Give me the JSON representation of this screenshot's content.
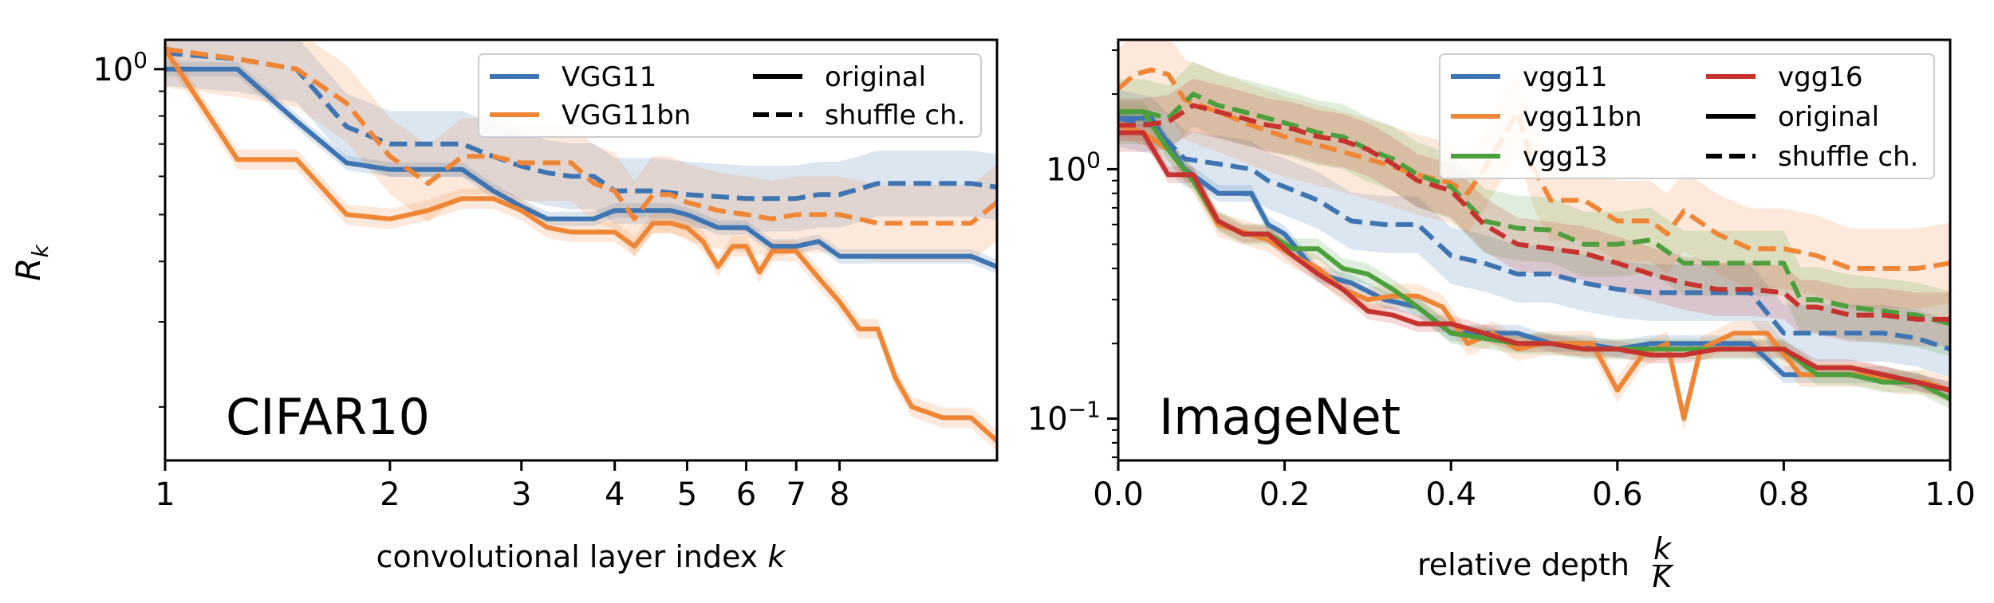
{
  "colors": {
    "blue": "#3f74b2",
    "orange": "#ef8636",
    "green": "#4d9f3d",
    "red": "#c6322d"
  },
  "chart_data": [
    {
      "type": "line",
      "panel_label": "CIFAR10",
      "xlabel": "convolutional layer index",
      "xlabel_var": "k",
      "ylabel": "R",
      "ylabel_sub": "k",
      "yscale": "log",
      "ylim": [
        0.155,
        1.15
      ],
      "xlim": [
        1,
        13
      ],
      "grid": false,
      "legend_position": "top-right",
      "x_ticks": [
        {
          "label": "1",
          "value": 1
        },
        {
          "label": "2",
          "value": 2
        },
        {
          "label": "3",
          "value": 3
        },
        {
          "label": "4",
          "value": 4
        },
        {
          "label": "5",
          "value": 5
        },
        {
          "label": "6",
          "value": 6
        },
        {
          "label": "7",
          "value": 7
        },
        {
          "label": "8",
          "value": 8
        }
      ],
      "y_ticks": [
        {
          "base": "10",
          "exp": "0",
          "value": 1.0
        }
      ],
      "legend": {
        "left": [
          {
            "label": "VGG11",
            "color_key": "blue",
            "style": "solid"
          },
          {
            "label": "VGG11bn",
            "color_key": "orange",
            "style": "solid"
          }
        ],
        "right": [
          {
            "label": "original",
            "color_key": "black",
            "style": "solid"
          },
          {
            "label": "shuffle ch.",
            "color_key": "black",
            "style": "dashed"
          }
        ]
      },
      "series": [
        {
          "name": "VGG11 original",
          "color_key": "blue",
          "style": "solid",
          "band": 0.035,
          "x": [
            1,
            1.25,
            1.5,
            1.75,
            2,
            2.25,
            2.5,
            2.75,
            3,
            3.25,
            3.5,
            3.75,
            4,
            4.25,
            4.5,
            4.75,
            5,
            5.5,
            6,
            6.5,
            7,
            7.5,
            8,
            9,
            10,
            11,
            12,
            13
          ],
          "y": [
            1.0,
            1.0,
            0.78,
            0.64,
            0.62,
            0.62,
            0.62,
            0.56,
            0.52,
            0.49,
            0.49,
            0.49,
            0.51,
            0.51,
            0.51,
            0.51,
            0.5,
            0.47,
            0.47,
            0.43,
            0.43,
            0.44,
            0.41,
            0.41,
            0.41,
            0.41,
            0.41,
            0.39
          ]
        },
        {
          "name": "VGG11 shuffle ch.",
          "color_key": "blue",
          "style": "dashed",
          "band": 0.17,
          "x": [
            1,
            1.25,
            1.5,
            1.75,
            2,
            2.25,
            2.5,
            2.75,
            3,
            3.25,
            3.5,
            3.75,
            4,
            4.5,
            5,
            6,
            6.5,
            7,
            7.5,
            8,
            9,
            10,
            11,
            12,
            13
          ],
          "y": [
            1.08,
            1.05,
            1.0,
            0.76,
            0.7,
            0.7,
            0.7,
            0.66,
            0.63,
            0.61,
            0.6,
            0.6,
            0.56,
            0.56,
            0.55,
            0.54,
            0.54,
            0.54,
            0.55,
            0.55,
            0.58,
            0.58,
            0.58,
            0.58,
            0.57
          ]
        },
        {
          "name": "VGG11bn original",
          "color_key": "orange",
          "style": "solid",
          "band": 0.05,
          "x": [
            1,
            1.25,
            1.5,
            1.75,
            2,
            2.25,
            2.5,
            2.75,
            3,
            3.25,
            3.5,
            3.75,
            4,
            4.25,
            4.5,
            4.75,
            5,
            5.25,
            5.5,
            5.75,
            6,
            6.25,
            6.5,
            6.75,
            7,
            7.5,
            8,
            8.5,
            9,
            9.5,
            10,
            11,
            12,
            13
          ],
          "y": [
            1.1,
            0.65,
            0.65,
            0.5,
            0.49,
            0.51,
            0.54,
            0.54,
            0.51,
            0.47,
            0.46,
            0.46,
            0.46,
            0.43,
            0.48,
            0.48,
            0.47,
            0.44,
            0.39,
            0.43,
            0.43,
            0.38,
            0.42,
            0.42,
            0.42,
            0.37,
            0.33,
            0.29,
            0.29,
            0.23,
            0.2,
            0.19,
            0.19,
            0.17
          ]
        },
        {
          "name": "VGG11bn shuffle ch.",
          "color_key": "orange",
          "style": "dashed",
          "band": 0.2,
          "x": [
            1,
            1.25,
            1.5,
            1.75,
            2,
            2.25,
            2.5,
            2.75,
            3,
            3.25,
            3.5,
            3.75,
            4,
            4.25,
            4.5,
            4.75,
            5,
            5.5,
            6,
            6.5,
            7,
            7.5,
            8,
            9,
            10,
            11,
            12,
            13
          ],
          "y": [
            1.1,
            1.05,
            1.0,
            0.85,
            0.66,
            0.58,
            0.66,
            0.66,
            0.64,
            0.64,
            0.64,
            0.58,
            0.56,
            0.49,
            0.55,
            0.55,
            0.53,
            0.51,
            0.5,
            0.49,
            0.5,
            0.5,
            0.5,
            0.48,
            0.48,
            0.48,
            0.48,
            0.53
          ]
        }
      ]
    },
    {
      "type": "line",
      "panel_label": "ImageNet",
      "xlabel": "relative depth",
      "xlabel_frac_num": "k",
      "xlabel_frac_den": "K",
      "yscale": "log",
      "ylim": [
        0.068,
        3.3
      ],
      "xlim": [
        0.0,
        1.0
      ],
      "grid": false,
      "legend_position": "top-right",
      "x_ticks": [
        {
          "label": "0.0",
          "value": 0.0
        },
        {
          "label": "0.2",
          "value": 0.2
        },
        {
          "label": "0.4",
          "value": 0.4
        },
        {
          "label": "0.6",
          "value": 0.6
        },
        {
          "label": "0.8",
          "value": 0.8
        },
        {
          "label": "1.0",
          "value": 1.0
        }
      ],
      "y_ticks": [
        {
          "base": "10",
          "exp": "0",
          "value": 1.0
        },
        {
          "base": "10",
          "exp": "−1",
          "value": 0.1
        }
      ],
      "legend": {
        "left": [
          {
            "label": "vgg11",
            "color_key": "blue",
            "style": "solid"
          },
          {
            "label": "vgg11bn",
            "color_key": "orange",
            "style": "solid"
          },
          {
            "label": "vgg13",
            "color_key": "green",
            "style": "solid"
          }
        ],
        "right": [
          {
            "label": "vgg16",
            "color_key": "red",
            "style": "solid"
          },
          {
            "label": "original",
            "color_key": "black",
            "style": "solid"
          },
          {
            "label": "shuffle ch.",
            "color_key": "black",
            "style": "dashed"
          }
        ]
      },
      "series": [
        {
          "name": "vgg11 original",
          "color_key": "blue",
          "style": "solid",
          "band": 0.08,
          "x": [
            0,
            0.04,
            0.08,
            0.12,
            0.16,
            0.18,
            0.2,
            0.24,
            0.28,
            0.32,
            0.36,
            0.4,
            0.44,
            0.48,
            0.52,
            0.56,
            0.6,
            0.64,
            0.68,
            0.72,
            0.76,
            0.8,
            0.84,
            0.88,
            0.92,
            0.96,
            1.0
          ],
          "y": [
            1.6,
            1.6,
            1.0,
            0.8,
            0.8,
            0.6,
            0.55,
            0.38,
            0.35,
            0.3,
            0.28,
            0.22,
            0.22,
            0.22,
            0.2,
            0.2,
            0.19,
            0.2,
            0.2,
            0.2,
            0.2,
            0.15,
            0.15,
            0.15,
            0.15,
            0.14,
            0.13
          ]
        },
        {
          "name": "vgg11 shuffle ch.",
          "color_key": "blue",
          "style": "dashed",
          "band": 0.3,
          "x": [
            0,
            0.04,
            0.08,
            0.12,
            0.16,
            0.18,
            0.2,
            0.24,
            0.28,
            0.32,
            0.36,
            0.4,
            0.44,
            0.48,
            0.52,
            0.56,
            0.6,
            0.64,
            0.68,
            0.72,
            0.76,
            0.8,
            0.84,
            0.88,
            0.92,
            0.96,
            1.0
          ],
          "y": [
            1.6,
            1.5,
            1.1,
            1.05,
            1.0,
            0.9,
            0.85,
            0.75,
            0.62,
            0.6,
            0.6,
            0.45,
            0.42,
            0.38,
            0.38,
            0.35,
            0.33,
            0.32,
            0.32,
            0.32,
            0.32,
            0.22,
            0.22,
            0.22,
            0.22,
            0.21,
            0.19
          ]
        },
        {
          "name": "vgg11bn original",
          "color_key": "orange",
          "style": "solid",
          "band": 0.12,
          "x": [
            0,
            0.03,
            0.06,
            0.09,
            0.12,
            0.15,
            0.18,
            0.21,
            0.24,
            0.27,
            0.3,
            0.33,
            0.36,
            0.39,
            0.42,
            0.45,
            0.48,
            0.51,
            0.54,
            0.57,
            0.6,
            0.63,
            0.66,
            0.68,
            0.7,
            0.74,
            0.78,
            0.82,
            0.86,
            0.9,
            0.94,
            0.97,
            1.0
          ],
          "y": [
            1.5,
            1.4,
            1.2,
            0.9,
            0.6,
            0.56,
            0.52,
            0.45,
            0.4,
            0.33,
            0.3,
            0.31,
            0.31,
            0.28,
            0.2,
            0.22,
            0.19,
            0.2,
            0.2,
            0.2,
            0.13,
            0.18,
            0.2,
            0.1,
            0.19,
            0.22,
            0.22,
            0.15,
            0.15,
            0.15,
            0.14,
            0.14,
            0.13
          ]
        },
        {
          "name": "vgg11bn shuffle ch.",
          "color_key": "orange",
          "style": "dashed",
          "band": 0.45,
          "x": [
            0,
            0.02,
            0.04,
            0.06,
            0.08,
            0.12,
            0.16,
            0.2,
            0.24,
            0.28,
            0.32,
            0.36,
            0.4,
            0.42,
            0.44,
            0.46,
            0.48,
            0.5,
            0.52,
            0.56,
            0.6,
            0.64,
            0.66,
            0.68,
            0.72,
            0.76,
            0.8,
            0.84,
            0.88,
            0.92,
            0.96,
            1.0
          ],
          "y": [
            2.1,
            2.4,
            2.5,
            2.4,
            1.9,
            1.7,
            1.5,
            1.35,
            1.25,
            1.15,
            1.05,
            0.95,
            0.88,
            0.8,
            1.0,
            1.3,
            1.7,
            1.0,
            0.75,
            0.75,
            0.62,
            0.62,
            0.55,
            0.68,
            0.55,
            0.48,
            0.48,
            0.45,
            0.4,
            0.4,
            0.4,
            0.42
          ]
        },
        {
          "name": "vgg13 original",
          "color_key": "green",
          "style": "solid",
          "band": 0.1,
          "x": [
            0,
            0.03,
            0.06,
            0.09,
            0.12,
            0.15,
            0.18,
            0.21,
            0.24,
            0.27,
            0.3,
            0.33,
            0.36,
            0.4,
            0.44,
            0.48,
            0.52,
            0.56,
            0.6,
            0.64,
            0.68,
            0.72,
            0.76,
            0.8,
            0.84,
            0.88,
            0.92,
            0.96,
            1.0
          ],
          "y": [
            1.7,
            1.7,
            1.2,
            0.9,
            0.62,
            0.55,
            0.55,
            0.48,
            0.48,
            0.4,
            0.38,
            0.33,
            0.28,
            0.22,
            0.21,
            0.2,
            0.2,
            0.19,
            0.19,
            0.19,
            0.19,
            0.19,
            0.19,
            0.19,
            0.15,
            0.15,
            0.14,
            0.14,
            0.12
          ]
        },
        {
          "name": "vgg13 shuffle ch.",
          "color_key": "green",
          "style": "dashed",
          "band": 0.35,
          "x": [
            0,
            0.03,
            0.06,
            0.09,
            0.12,
            0.15,
            0.18,
            0.21,
            0.24,
            0.27,
            0.3,
            0.33,
            0.36,
            0.4,
            0.44,
            0.48,
            0.52,
            0.56,
            0.6,
            0.64,
            0.68,
            0.72,
            0.76,
            0.8,
            0.82,
            0.84,
            0.88,
            0.92,
            0.96,
            1.0
          ],
          "y": [
            1.7,
            1.7,
            1.6,
            2.0,
            1.8,
            1.7,
            1.6,
            1.5,
            1.4,
            1.35,
            1.2,
            1.1,
            0.95,
            0.85,
            0.62,
            0.58,
            0.57,
            0.5,
            0.5,
            0.52,
            0.42,
            0.42,
            0.42,
            0.42,
            0.3,
            0.3,
            0.28,
            0.27,
            0.26,
            0.24
          ]
        },
        {
          "name": "vgg16 original",
          "color_key": "red",
          "style": "solid",
          "band": 0.08,
          "x": [
            0,
            0.03,
            0.06,
            0.09,
            0.12,
            0.15,
            0.18,
            0.21,
            0.24,
            0.27,
            0.3,
            0.33,
            0.36,
            0.4,
            0.44,
            0.48,
            0.52,
            0.56,
            0.6,
            0.64,
            0.68,
            0.72,
            0.76,
            0.8,
            0.84,
            0.88,
            0.92,
            0.96,
            1.0
          ],
          "y": [
            1.4,
            1.4,
            0.95,
            0.95,
            0.62,
            0.55,
            0.55,
            0.45,
            0.38,
            0.33,
            0.27,
            0.26,
            0.24,
            0.24,
            0.22,
            0.2,
            0.2,
            0.19,
            0.19,
            0.18,
            0.18,
            0.19,
            0.19,
            0.19,
            0.16,
            0.16,
            0.15,
            0.14,
            0.13
          ]
        },
        {
          "name": "vgg16 shuffle ch.",
          "color_key": "red",
          "style": "dashed",
          "band": 0.28,
          "x": [
            0,
            0.03,
            0.06,
            0.09,
            0.12,
            0.15,
            0.18,
            0.21,
            0.24,
            0.27,
            0.3,
            0.33,
            0.36,
            0.4,
            0.44,
            0.48,
            0.52,
            0.56,
            0.6,
            0.64,
            0.68,
            0.72,
            0.76,
            0.8,
            0.82,
            0.84,
            0.88,
            0.92,
            0.96,
            1.0
          ],
          "y": [
            1.5,
            1.5,
            1.55,
            1.8,
            1.7,
            1.6,
            1.5,
            1.45,
            1.35,
            1.3,
            1.2,
            1.05,
            0.9,
            0.82,
            0.6,
            0.5,
            0.48,
            0.46,
            0.42,
            0.38,
            0.35,
            0.33,
            0.33,
            0.32,
            0.28,
            0.28,
            0.26,
            0.26,
            0.25,
            0.25
          ]
        }
      ]
    }
  ]
}
